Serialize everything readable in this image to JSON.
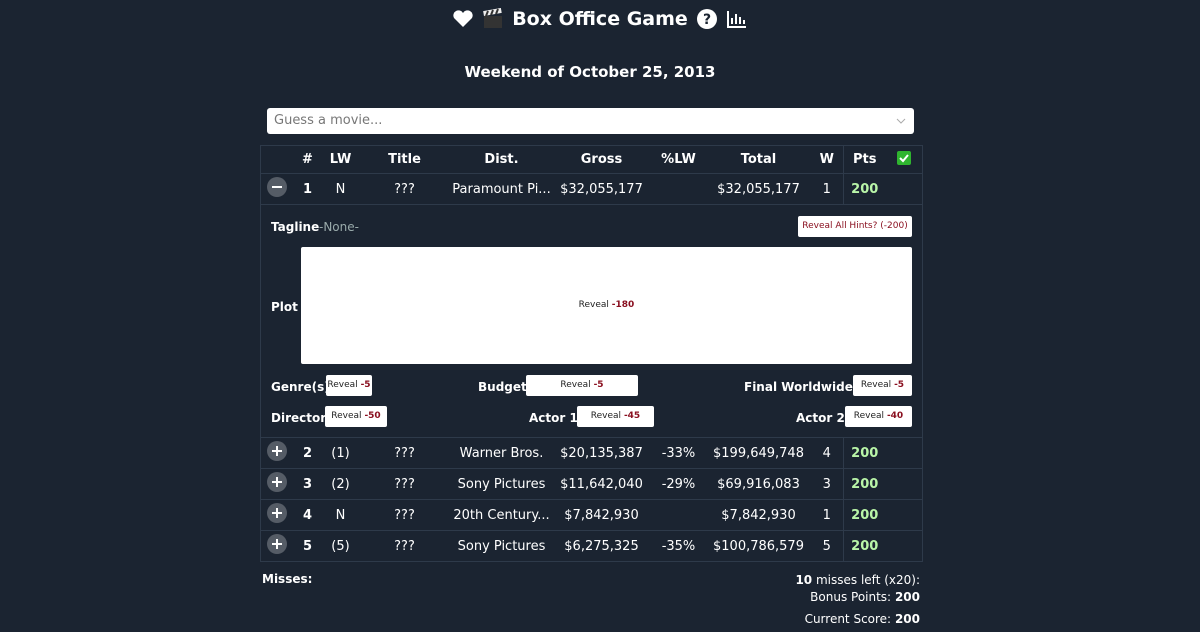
{
  "header": {
    "title": "Box Office Game",
    "subtitle": "Weekend of October 25, 2013"
  },
  "search": {
    "placeholder": "Guess a movie..."
  },
  "table": {
    "columns": [
      "#",
      "LW",
      "Title",
      "Dist.",
      "Gross",
      "%LW",
      "Total",
      "W",
      "Pts"
    ],
    "rows": [
      {
        "rank": "1",
        "lw": "N",
        "title": "???",
        "dist": "Paramount Pi...",
        "gross": "$32,055,177",
        "total": "$32,055,177",
        "weeks": "1",
        "pts": "200"
      },
      {
        "rank": "2",
        "lw": "(1)",
        "title": "???",
        "dist": "Warner Bros.",
        "gross": "$20,135,387",
        "pct_lw": "-33%",
        "total": "$199,649,748",
        "weeks": "4",
        "pts": "200"
      },
      {
        "rank": "3",
        "lw": "(2)",
        "title": "???",
        "dist": "Sony Pictures",
        "gross": "$11,642,040",
        "pct_lw": "-29%",
        "total": "$69,916,083",
        "weeks": "3",
        "pts": "200"
      },
      {
        "rank": "4",
        "lw": "N",
        "title": "???",
        "dist": "20th Century...",
        "gross": "$7,842,930",
        "total": "$7,842,930",
        "weeks": "1",
        "pts": "200"
      },
      {
        "rank": "5",
        "lw": "(5)",
        "title": "???",
        "dist": "Sony Pictures",
        "gross": "$6,275,325",
        "pct_lw": "-35%",
        "total": "$100,786,579",
        "weeks": "5",
        "pts": "200"
      }
    ]
  },
  "hints": {
    "tagline_label": "Tagline",
    "tagline_value": "-None-",
    "reveal_all": "Reveal All Hints? (-200)",
    "plot": {
      "label": "Plot",
      "button": "Reveal",
      "cost": "-180"
    },
    "fields": [
      {
        "label": "Genre(s)",
        "button": "Reveal",
        "cost": "-5"
      },
      {
        "label": "Budget",
        "button": "Reveal",
        "cost": "-5"
      },
      {
        "label": "Final Worldwide $",
        "button": "Reveal",
        "cost": "-5"
      },
      {
        "label": "Director",
        "button": "Reveal",
        "cost": "-50"
      },
      {
        "label": "Actor 1",
        "button": "Reveal",
        "cost": "-45"
      },
      {
        "label": "Actor 2",
        "button": "Reveal",
        "cost": "-40"
      }
    ]
  },
  "footer": {
    "misses_label": "Misses:",
    "misses_left": "10",
    "misses_left_text": "misses left (x20):",
    "bonus_label": "Bonus Points:",
    "bonus_value": "200",
    "score_label": "Current Score:",
    "score_value": "200"
  }
}
